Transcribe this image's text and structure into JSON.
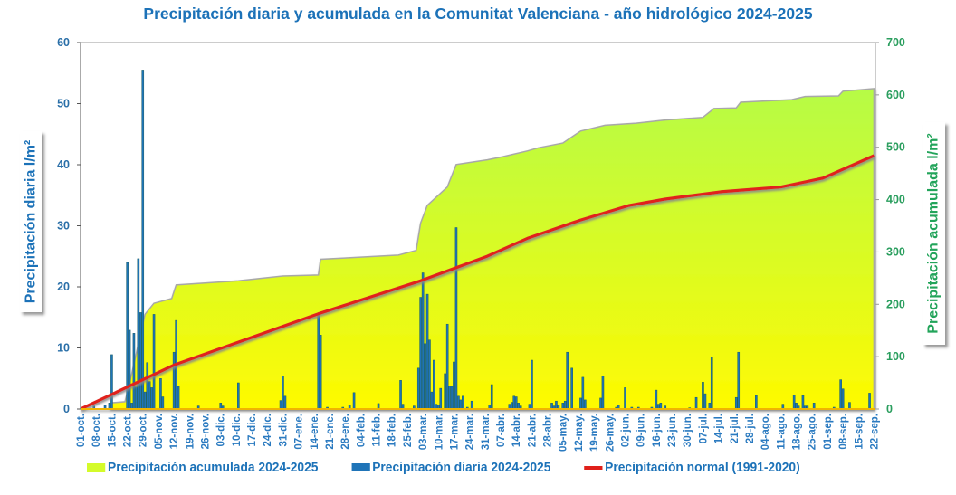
{
  "chart_data": {
    "type": "bar+area+line",
    "title": "Precipitación diaria y acumulada en la Comunitat Valenciana - año hidrológico 2024-2025",
    "ylabel_left": "Precipitación diaria l/m²",
    "ylabel_right": "Precipitación acumulada l/m²",
    "ylim_left": [
      0,
      60
    ],
    "yticks_left": [
      "0",
      "10",
      "20",
      "30",
      "40",
      "50",
      "60"
    ],
    "ylim_right": [
      0,
      700
    ],
    "yticks_right": [
      "0",
      "100",
      "200",
      "300",
      "400",
      "500",
      "600",
      "700"
    ],
    "x_start": "2024-10-01",
    "x_ticks": [
      "01-oct.",
      "08-oct.",
      "15-oct.",
      "22-oct.",
      "29-oct.",
      "05-nov.",
      "12-nov.",
      "19-nov.",
      "26-nov.",
      "03-dic.",
      "10-dic.",
      "17-dic.",
      "24-dic.",
      "31-dic.",
      "07-ene.",
      "14-ene.",
      "21-ene.",
      "28-ene.",
      "04-feb.",
      "11-feb.",
      "18-feb.",
      "25-feb.",
      "03-mar.",
      "10-mar.",
      "17-mar.",
      "24-mar.",
      "31-mar.",
      "07-abr.",
      "14-abr.",
      "21-abr.",
      "28-abr.",
      "05-may.",
      "12-may.",
      "19-may.",
      "26-may.",
      "02-jun.",
      "09-jun.",
      "16-jun.",
      "23-jun.",
      "30-jun.",
      "07-jul.",
      "14-jul.",
      "21-jul.",
      "28-jul.",
      "04-ago.",
      "11-ago.",
      "18-ago.",
      "25-ago.",
      "01-sep.",
      "08-sep.",
      "15-sep.",
      "22-sep."
    ],
    "grid": false,
    "legend_position": "bottom",
    "series": [
      {
        "name": "Precipitación acumulada 2024-2025",
        "type": "area",
        "axis": "right",
        "color": "#d4fb2a",
        "points": [
          [
            "2024-10-01",
            0
          ],
          [
            "2024-10-14",
            0
          ],
          [
            "2024-10-15",
            12
          ],
          [
            "2024-10-21",
            14
          ],
          [
            "2024-10-24",
            67
          ],
          [
            "2024-10-30",
            181
          ],
          [
            "2024-11-03",
            202
          ],
          [
            "2024-11-11",
            211
          ],
          [
            "2024-11-13",
            237
          ],
          [
            "2024-12-11",
            245
          ],
          [
            "2024-12-31",
            254
          ],
          [
            "2025-01-16",
            256
          ],
          [
            "2025-01-17",
            286
          ],
          [
            "2025-02-21",
            294
          ],
          [
            "2025-03-01",
            303
          ],
          [
            "2025-03-03",
            355
          ],
          [
            "2025-03-06",
            389
          ],
          [
            "2025-03-15",
            424
          ],
          [
            "2025-03-19",
            467
          ],
          [
            "2025-04-02",
            476
          ],
          [
            "2025-04-09",
            482
          ],
          [
            "2025-04-20",
            493
          ],
          [
            "2025-04-25",
            499
          ],
          [
            "2025-05-06",
            508
          ],
          [
            "2025-05-14",
            531
          ],
          [
            "2025-05-25",
            542
          ],
          [
            "2025-06-08",
            546
          ],
          [
            "2025-06-21",
            552
          ],
          [
            "2025-07-08",
            557
          ],
          [
            "2025-07-13",
            574
          ],
          [
            "2025-07-23",
            575
          ],
          [
            "2025-07-25",
            586
          ],
          [
            "2025-08-17",
            591
          ],
          [
            "2025-08-23",
            597
          ],
          [
            "2025-09-07",
            598
          ],
          [
            "2025-09-09",
            607
          ],
          [
            "2025-09-23",
            612
          ]
        ]
      },
      {
        "name": "Precipitación diaria 2024-2025",
        "type": "bar",
        "axis": "left",
        "color": "#1f74b8",
        "points": [
          [
            "2024-10-07",
            0.5
          ],
          [
            "2024-10-12",
            0.7
          ],
          [
            "2024-10-14",
            1
          ],
          [
            "2024-10-15",
            8.9
          ],
          [
            "2024-10-22",
            24
          ],
          [
            "2024-10-23",
            12.9
          ],
          [
            "2024-10-24",
            1
          ],
          [
            "2024-10-25",
            12.4
          ],
          [
            "2024-10-26",
            3.6
          ],
          [
            "2024-10-27",
            24.6
          ],
          [
            "2024-10-28",
            15.8
          ],
          [
            "2024-10-29",
            55.5
          ],
          [
            "2024-10-30",
            2.8
          ],
          [
            "2024-10-31",
            7.6
          ],
          [
            "2024-11-01",
            4.5
          ],
          [
            "2024-11-02",
            3.5
          ],
          [
            "2024-11-03",
            15.5
          ],
          [
            "2024-11-06",
            5
          ],
          [
            "2024-11-07",
            2
          ],
          [
            "2024-11-12",
            9.3
          ],
          [
            "2024-11-13",
            14.5
          ],
          [
            "2024-11-14",
            3.7
          ],
          [
            "2024-11-23",
            0.5
          ],
          [
            "2024-12-03",
            1
          ],
          [
            "2024-12-04",
            0.5
          ],
          [
            "2024-12-11",
            4.3
          ],
          [
            "2024-12-30",
            1.4
          ],
          [
            "2024-12-31",
            5.4
          ],
          [
            "2025-01-01",
            2.1
          ],
          [
            "2025-01-16",
            15.7
          ],
          [
            "2025-01-17",
            12.1
          ],
          [
            "2025-01-20",
            0.3
          ],
          [
            "2025-01-27",
            0.3
          ],
          [
            "2025-01-30",
            0.7
          ],
          [
            "2025-02-01",
            2.7
          ],
          [
            "2025-02-12",
            0.9
          ],
          [
            "2025-02-22",
            4.7
          ],
          [
            "2025-02-23",
            0.8
          ],
          [
            "2025-02-28",
            0.5
          ],
          [
            "2025-03-02",
            6.7
          ],
          [
            "2025-03-03",
            18.3
          ],
          [
            "2025-03-04",
            22.3
          ],
          [
            "2025-03-05",
            10.7
          ],
          [
            "2025-03-06",
            18.8
          ],
          [
            "2025-03-07",
            11.3
          ],
          [
            "2025-03-08",
            2.8
          ],
          [
            "2025-03-09",
            8
          ],
          [
            "2025-03-10",
            0.8
          ],
          [
            "2025-03-11",
            0.7
          ],
          [
            "2025-03-12",
            3.4
          ],
          [
            "2025-03-14",
            5.8
          ],
          [
            "2025-03-15",
            13.9
          ],
          [
            "2025-03-16",
            3.8
          ],
          [
            "2025-03-17",
            3.7
          ],
          [
            "2025-03-18",
            7.7
          ],
          [
            "2025-03-19",
            29.7
          ],
          [
            "2025-03-20",
            2.1
          ],
          [
            "2025-03-21",
            1.5
          ],
          [
            "2025-03-22",
            2.1
          ],
          [
            "2025-03-24",
            0.3
          ],
          [
            "2025-03-26",
            1.3
          ],
          [
            "2025-04-03",
            0.7
          ],
          [
            "2025-04-04",
            4
          ],
          [
            "2025-04-12",
            0.8
          ],
          [
            "2025-04-13",
            1.1
          ],
          [
            "2025-04-14",
            2.1
          ],
          [
            "2025-04-15",
            2
          ],
          [
            "2025-04-16",
            1
          ],
          [
            "2025-04-17",
            0.5
          ],
          [
            "2025-04-21",
            0.8
          ],
          [
            "2025-04-22",
            8
          ],
          [
            "2025-05-01",
            1
          ],
          [
            "2025-05-02",
            0.5
          ],
          [
            "2025-05-03",
            1.3
          ],
          [
            "2025-05-04",
            0.7
          ],
          [
            "2025-05-06",
            1
          ],
          [
            "2025-05-07",
            1.3
          ],
          [
            "2025-05-08",
            9.3
          ],
          [
            "2025-05-10",
            6.7
          ],
          [
            "2025-05-14",
            1.8
          ],
          [
            "2025-05-15",
            5.2
          ],
          [
            "2025-05-16",
            1.5
          ],
          [
            "2025-05-23",
            1.8
          ],
          [
            "2025-05-24",
            5.4
          ],
          [
            "2025-05-30",
            0.3
          ],
          [
            "2025-05-31",
            0.7
          ],
          [
            "2025-06-03",
            3.5
          ],
          [
            "2025-06-06",
            0.3
          ],
          [
            "2025-06-09",
            0.3
          ],
          [
            "2025-06-15",
            0.3
          ],
          [
            "2025-06-17",
            3.1
          ],
          [
            "2025-06-18",
            0.8
          ],
          [
            "2025-06-19",
            1
          ],
          [
            "2025-06-21",
            0.5
          ],
          [
            "2025-07-02",
            0.2
          ],
          [
            "2025-07-05",
            1.9
          ],
          [
            "2025-07-08",
            4.4
          ],
          [
            "2025-07-09",
            2.5
          ],
          [
            "2025-07-11",
            1
          ],
          [
            "2025-07-12",
            8.5
          ],
          [
            "2025-07-23",
            1.9
          ],
          [
            "2025-07-24",
            9.3
          ],
          [
            "2025-08-01",
            2.2
          ],
          [
            "2025-08-13",
            0.8
          ],
          [
            "2025-08-18",
            2.3
          ],
          [
            "2025-08-19",
            1
          ],
          [
            "2025-08-20",
            0.5
          ],
          [
            "2025-08-22",
            2.2
          ],
          [
            "2025-08-23",
            0.5
          ],
          [
            "2025-08-24",
            0.5
          ],
          [
            "2025-08-27",
            1
          ],
          [
            "2025-09-05",
            0.3
          ],
          [
            "2025-09-08",
            4.8
          ],
          [
            "2025-09-09",
            3.3
          ],
          [
            "2025-09-12",
            1.1
          ],
          [
            "2025-09-21",
            2.6
          ]
        ]
      },
      {
        "name": "Precipitación normal (1991-2020)",
        "type": "line",
        "axis": "right",
        "color": "#e0201a",
        "points": [
          [
            "2024-10-01",
            0
          ],
          [
            "2024-11-12",
            84
          ],
          [
            "2025-01-16",
            182
          ],
          [
            "2025-03-03",
            245
          ],
          [
            "2025-04-02",
            292
          ],
          [
            "2025-04-20",
            326
          ],
          [
            "2025-05-14",
            361
          ],
          [
            "2025-06-05",
            389
          ],
          [
            "2025-06-21",
            401
          ],
          [
            "2025-07-16",
            415
          ],
          [
            "2025-08-12",
            424
          ],
          [
            "2025-08-31",
            441
          ],
          [
            "2025-09-23",
            484
          ]
        ]
      }
    ]
  }
}
